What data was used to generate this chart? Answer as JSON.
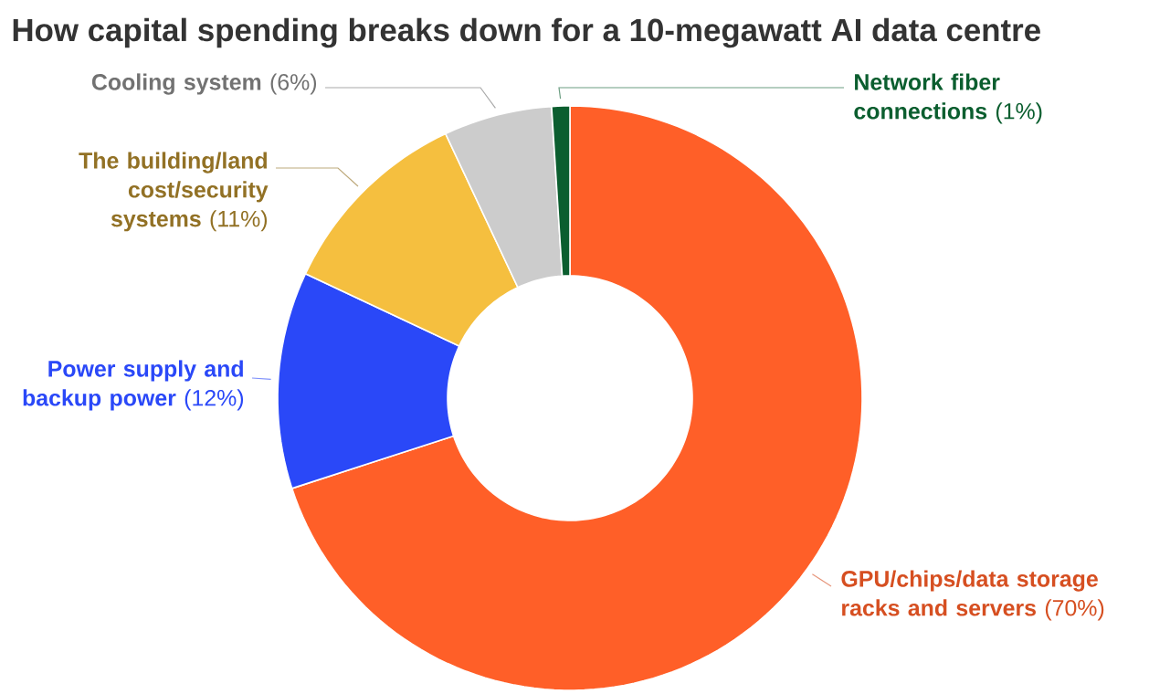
{
  "chart_data": {
    "type": "donut",
    "title": "How capital spending breaks down for a 10-megawatt AI data centre",
    "categories": [
      "GPU/chips/data storage racks and servers",
      "Power supply and backup power",
      "The building/land cost/security systems",
      "Cooling system",
      "Network fiber connections"
    ],
    "values": [
      70,
      12,
      11,
      6,
      1
    ],
    "colors": [
      "#ff5f28",
      "#2a48f8",
      "#f5bf3f",
      "#cccccc",
      "#0b5e2f"
    ],
    "value_labels": [
      "(70%)",
      "(12%)",
      "(11%)",
      "(6%)",
      "(1%)"
    ]
  }
}
